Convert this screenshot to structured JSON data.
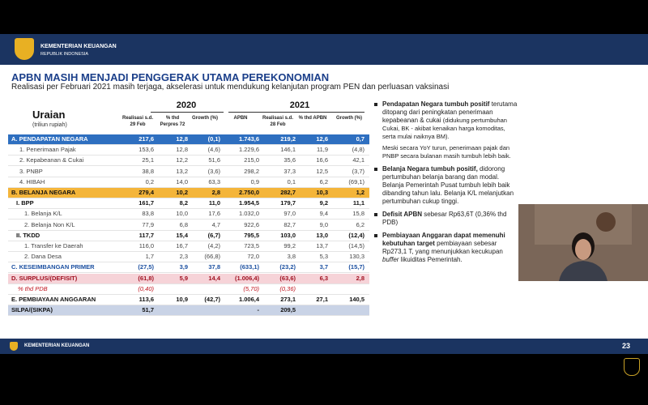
{
  "header": {
    "org": "KEMENTERIAN KEUANGAN",
    "sub": "REPUBLIK INDONESIA"
  },
  "slide": {
    "title": "APBN MASIH MENJADI PENGGERAK UTAMA PEREKONOMIAN",
    "subtitle": "Realisasi per Februari 2021 masih terjaga, akselerasi untuk mendukung kelanjutan program PEN dan perluasan vaksinasi"
  },
  "table": {
    "label_header": "Uraian",
    "unit": "(triliun rupiah)",
    "years": [
      "2020",
      "2021"
    ],
    "columns": [
      "Realisasi s.d. 29 Feb",
      "% thd Perpres 72",
      "Growth (%)",
      "APBN",
      "Realisasi s.d. 28 Feb",
      "% thd APBN",
      "Growth (%)"
    ],
    "rows": [
      {
        "kind": "blue",
        "cells": [
          "A. PENDAPATAN NEGARA",
          "217,6",
          "12,8",
          "(0,1)",
          "1.743,6",
          "219,2",
          "12,6",
          "0,7"
        ]
      },
      {
        "kind": "sub",
        "cells": [
          "1. Penerimaan Pajak",
          "153,6",
          "12,8",
          "(4,6)",
          "1.229,6",
          "146,1",
          "11,9",
          "(4,8)"
        ]
      },
      {
        "kind": "sub",
        "cells": [
          "2. Kepabeanan & Cukai",
          "25,1",
          "12,2",
          "51,6",
          "215,0",
          "35,6",
          "16,6",
          "42,1"
        ]
      },
      {
        "kind": "sub",
        "cells": [
          "3. PNBP",
          "38,8",
          "13,2",
          "(3,6)",
          "298,2",
          "37,3",
          "12,5",
          "(3,7)"
        ]
      },
      {
        "kind": "sub",
        "cells": [
          "4. HIBAH",
          "0,2",
          "14,0",
          "63,3",
          "0,9",
          "0,1",
          "6,2",
          "(69,1)"
        ]
      },
      {
        "kind": "orange",
        "cells": [
          "B. BELANJA NEGARA",
          "279,4",
          "10,2",
          "2,8",
          "2.750,0",
          "282,7",
          "10,3",
          "1,2"
        ]
      },
      {
        "kind": "group",
        "cells": [
          "I. BPP",
          "161,7",
          "8,2",
          "11,0",
          "1.954,5",
          "179,7",
          "9,2",
          "11,1"
        ]
      },
      {
        "kind": "subsub",
        "cells": [
          "1. Belanja K/L",
          "83,8",
          "10,0",
          "17,6",
          "1.032,0",
          "97,0",
          "9,4",
          "15,8"
        ]
      },
      {
        "kind": "subsub",
        "cells": [
          "2. Belanja Non K/L",
          "77,9",
          "6,8",
          "4,7",
          "922,6",
          "82,7",
          "9,0",
          "6,2"
        ]
      },
      {
        "kind": "group",
        "cells": [
          "II. TKDD",
          "117,7",
          "15,4",
          "(6,7)",
          "795,5",
          "103,0",
          "13,0",
          "(12,4)"
        ]
      },
      {
        "kind": "subsub",
        "cells": [
          "1. Transfer ke Daerah",
          "116,0",
          "16,7",
          "(4,2)",
          "723,5",
          "99,2",
          "13,7",
          "(14,5)"
        ]
      },
      {
        "kind": "subsub",
        "cells": [
          "2. Dana Desa",
          "1,7",
          "2,3",
          "(66,8)",
          "72,0",
          "3,8",
          "5,3",
          "130,3"
        ]
      },
      {
        "kind": "plain-blue",
        "cells": [
          "C. KESEIMBANGAN PRIMER",
          "(27,5)",
          "3,9",
          "37,8",
          "(633,1)",
          "(23,2)",
          "3,7",
          "(15,7)"
        ]
      },
      {
        "kind": "pink",
        "cells": [
          "D. SURPLUS/(DEFISIT)",
          "(61,8)",
          "5,9",
          "14,4",
          "(1.006,4)",
          "(63,6)",
          "6,3",
          "2,8"
        ]
      },
      {
        "kind": "pdb",
        "cells": [
          "% thd PDB",
          "(0,40)",
          null,
          null,
          "(5,70)",
          "(0,36)",
          null,
          null
        ]
      },
      {
        "kind": "plain",
        "cells": [
          "E. PEMBIAYAAN ANGGARAN",
          "113,6",
          "10,9",
          "(42,7)",
          "1.006,4",
          "273,1",
          "27,1",
          "140,5"
        ]
      },
      {
        "kind": "silpa",
        "cells": [
          "SILPA/(SIKPA)",
          "51,7",
          null,
          null,
          "-",
          "209,5",
          null,
          null
        ]
      }
    ]
  },
  "bullets": [
    [
      [
        {
          "text": "Pendapatan Negara tumbuh positif",
          "style": "bold"
        },
        {
          "text": " terutama ditopang dari peningkatan penerimaan kepabeanan & cukai ",
          "style": "normal"
        },
        {
          "text": "(didukung pertumbuhan Cukai, BK - akibat kenaikan harga komoditas, serta mulai naiknya BM).",
          "style": "small"
        }
      ],
      [
        {
          "text": "Meski secara YoY turun, penerimaan pajak dan PNBP secara bulanan masih tumbuh lebih baik.",
          "style": "small"
        }
      ]
    ],
    [
      [
        {
          "text": "Belanja Negara tumbuh positif,",
          "style": "bold"
        },
        {
          "text": " didorong pertumbuhan belanja barang dan modal. Belanja Pemerintah Pusat tumbuh lebih baik dibanding tahun lalu. Belanja K/L melanjutkan pertumbuhan cukup tinggi.",
          "style": "normal"
        }
      ]
    ],
    [
      [
        {
          "text": "Defisit APBN",
          "style": "bold"
        },
        {
          "text": " sebesar Rp63,6T (0,36% thd PDB)",
          "style": "normal"
        }
      ]
    ],
    [
      [
        {
          "text": "Pembiayaan Anggaran dapat memenuhi kebutuhan target",
          "style": "bold"
        },
        {
          "text": " pembiayaan sebesar Rp273,1 T, yang menunjukkan kecukupan ",
          "style": "normal"
        },
        {
          "text": "buffer",
          "style": "italic"
        },
        {
          "text": " likuiditas Pemerintah.",
          "style": "normal"
        }
      ]
    ]
  ],
  "footer": {
    "org": "KEMENTERIAN KEUANGAN",
    "page": "23"
  }
}
